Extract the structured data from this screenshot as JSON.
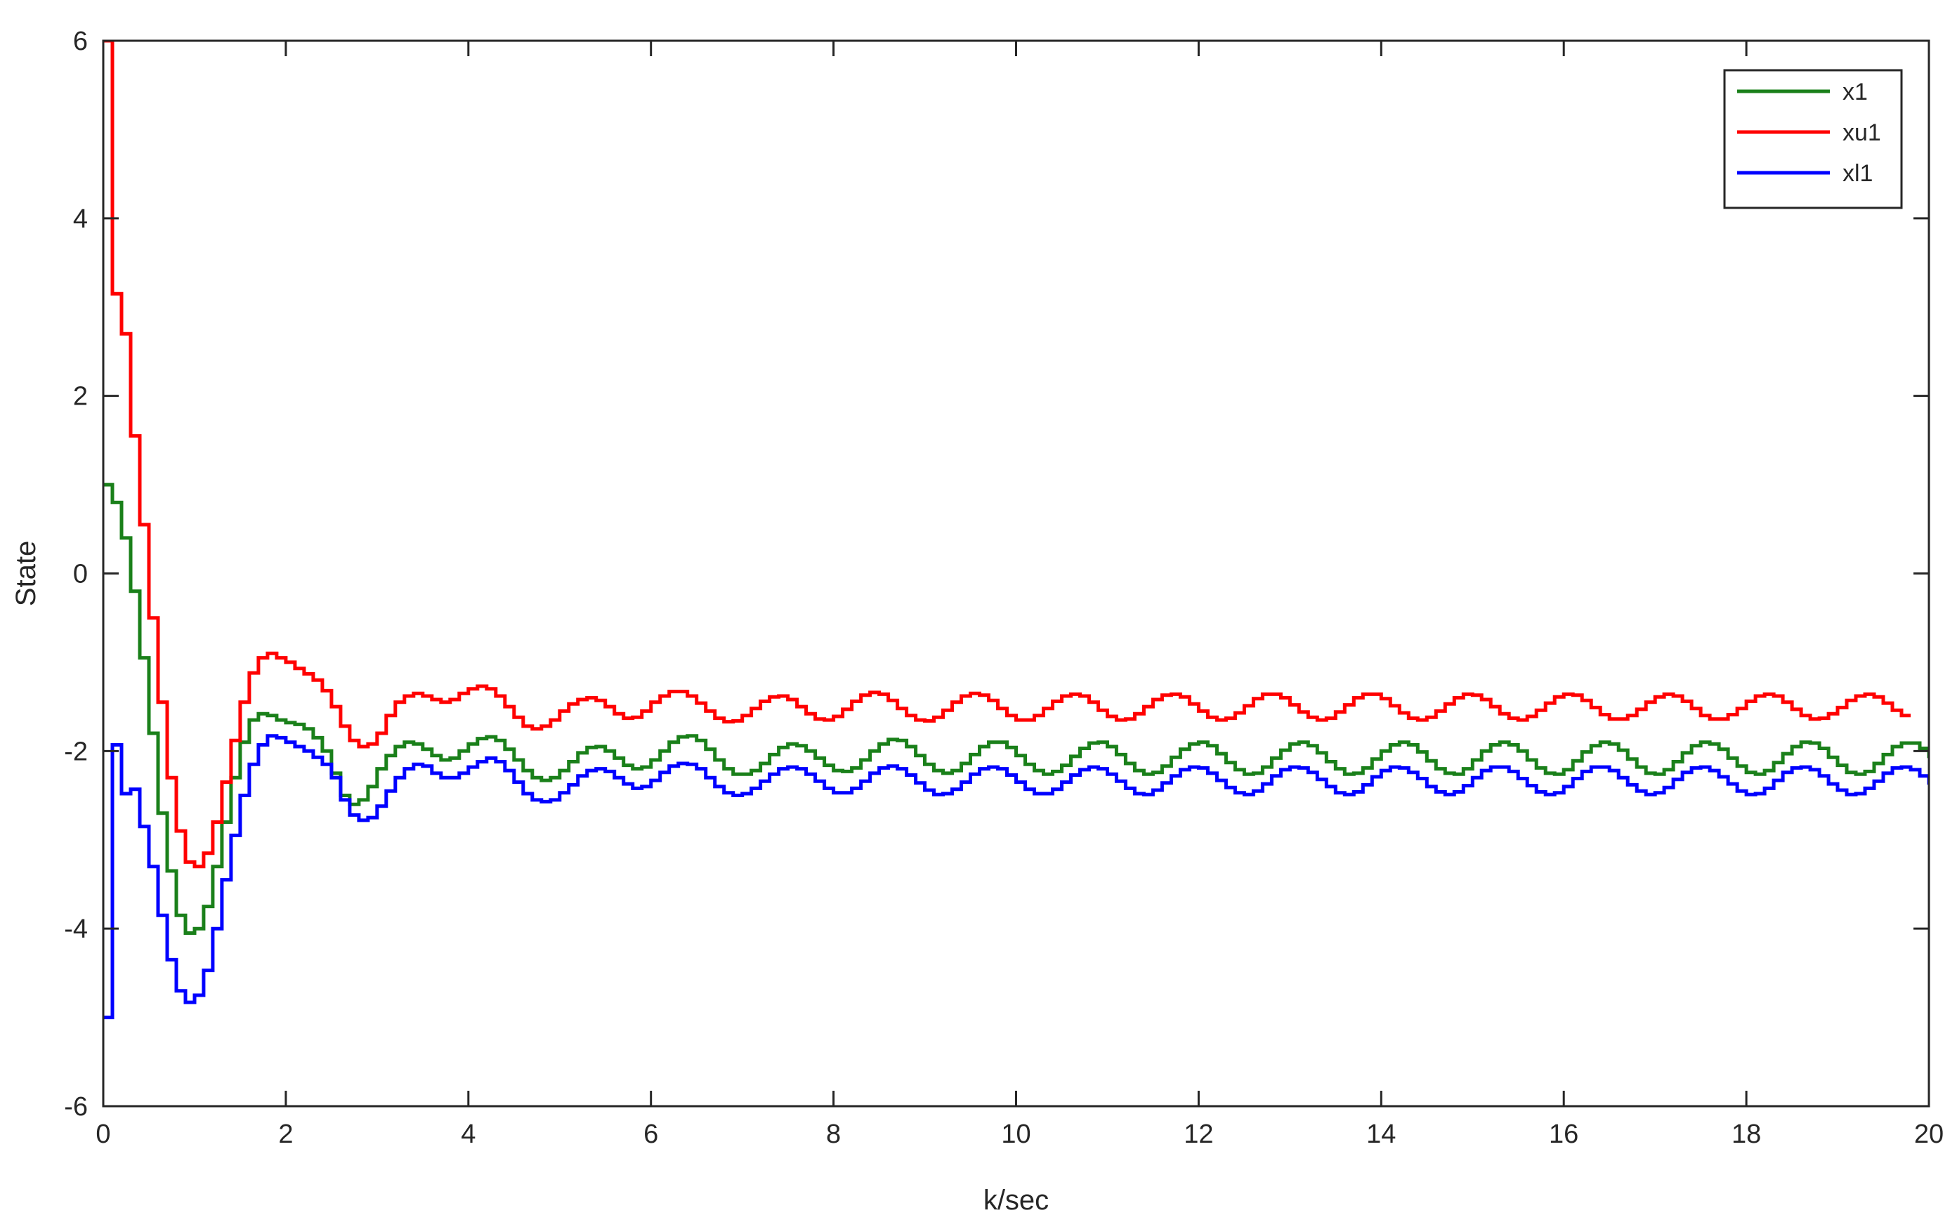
{
  "chart_data": {
    "type": "line",
    "step": true,
    "xlabel": "k/sec",
    "ylabel": "State",
    "xlim": [
      0,
      20
    ],
    "ylim": [
      -6,
      6
    ],
    "xticks": [
      0,
      2,
      4,
      6,
      8,
      10,
      12,
      14,
      16,
      18,
      20
    ],
    "yticks": [
      -6,
      -4,
      -2,
      0,
      2,
      4,
      6
    ],
    "xtick_labels": [
      "0",
      "2",
      "4",
      "6",
      "8",
      "10",
      "12",
      "14",
      "16",
      "18",
      "20"
    ],
    "ytick_labels": [
      "-6",
      "-4",
      "-2",
      "0",
      "2",
      "4",
      "6"
    ],
    "grid": false,
    "box": true,
    "legend": {
      "position": "top-right"
    },
    "sample_period": 0.1,
    "x_start": 0,
    "series": [
      {
        "name": "x1",
        "color": "#1a801a",
        "values": [
          1.0,
          0.8,
          0.4,
          -0.2,
          -0.95,
          -1.8,
          -2.7,
          -3.35,
          -3.85,
          -4.05,
          -4.0,
          -3.75,
          -3.3,
          -2.8,
          -2.3,
          -1.9,
          -1.65,
          -1.58,
          -1.6,
          -1.65,
          -1.68,
          -1.7,
          -1.75,
          -1.85,
          -2.0,
          -2.25,
          -2.5,
          -2.6,
          -2.55,
          -2.4,
          -2.2,
          -2.05,
          -1.95,
          -1.9,
          -1.92,
          -1.98,
          -2.05,
          -2.1,
          -2.08,
          -2.0,
          -1.92,
          -1.86,
          -1.84,
          -1.88,
          -1.98,
          -2.1,
          -2.22,
          -2.3,
          -2.33,
          -2.3,
          -2.22,
          -2.12,
          -2.02,
          -1.96,
          -1.95,
          -2.0,
          -2.08,
          -2.16,
          -2.2,
          -2.18,
          -2.1,
          -2.0,
          -1.9,
          -1.84,
          -1.83,
          -1.88,
          -1.98,
          -2.1,
          -2.2,
          -2.26,
          -2.26,
          -2.22,
          -2.14,
          -2.04,
          -1.96,
          -1.92,
          -1.94,
          -2.0,
          -2.08,
          -2.16,
          -2.22,
          -2.23,
          -2.19,
          -2.1,
          -2.0,
          -1.92,
          -1.87,
          -1.88,
          -1.95,
          -2.05,
          -2.15,
          -2.22,
          -2.25,
          -2.22,
          -2.14,
          -2.04,
          -1.95,
          -1.9,
          -1.9,
          -1.96,
          -2.05,
          -2.15,
          -2.22,
          -2.26,
          -2.23,
          -2.16,
          -2.06,
          -1.97,
          -1.91,
          -1.9,
          -1.95,
          -2.04,
          -2.14,
          -2.22,
          -2.26,
          -2.24,
          -2.17,
          -2.07,
          -1.98,
          -1.92,
          -1.9,
          -1.94,
          -2.03,
          -2.13,
          -2.21,
          -2.26,
          -2.25,
          -2.18,
          -2.08,
          -1.99,
          -1.92,
          -1.9,
          -1.94,
          -2.02,
          -2.12,
          -2.2,
          -2.26,
          -2.25,
          -2.19,
          -2.09,
          -2.0,
          -1.93,
          -1.9,
          -1.93,
          -2.01,
          -2.11,
          -2.2,
          -2.25,
          -2.26,
          -2.2,
          -2.1,
          -2.0,
          -1.93,
          -1.9,
          -1.93,
          -2.0,
          -2.1,
          -2.19,
          -2.25,
          -2.26,
          -2.21,
          -2.11,
          -2.01,
          -1.94,
          -1.9,
          -1.92,
          -1.99,
          -2.09,
          -2.18,
          -2.25,
          -2.26,
          -2.21,
          -2.12,
          -2.02,
          -1.94,
          -1.9,
          -1.92,
          -1.98,
          -2.08,
          -2.17,
          -2.24,
          -2.26,
          -2.22,
          -2.13,
          -2.03,
          -1.95,
          -1.9,
          -1.91,
          -1.97,
          -2.07,
          -2.16,
          -2.24,
          -2.26,
          -2.23,
          -2.14,
          -2.04,
          -1.95,
          -1.91,
          -1.91,
          -1.97,
          -2.06,
          -2.16,
          -2.23
        ]
      },
      {
        "name": "xu1",
        "color": "#ff0000",
        "values": [
          6.0,
          3.15,
          2.7,
          1.55,
          0.55,
          -0.5,
          -1.45,
          -2.3,
          -2.9,
          -3.25,
          -3.3,
          -3.15,
          -2.8,
          -2.35,
          -1.88,
          -1.45,
          -1.12,
          -0.95,
          -0.9,
          -0.95,
          -1.0,
          -1.07,
          -1.13,
          -1.2,
          -1.32,
          -1.5,
          -1.72,
          -1.88,
          -1.95,
          -1.92,
          -1.8,
          -1.6,
          -1.45,
          -1.38,
          -1.35,
          -1.38,
          -1.42,
          -1.45,
          -1.42,
          -1.35,
          -1.3,
          -1.27,
          -1.3,
          -1.38,
          -1.5,
          -1.62,
          -1.72,
          -1.75,
          -1.72,
          -1.65,
          -1.55,
          -1.47,
          -1.42,
          -1.4,
          -1.43,
          -1.5,
          -1.58,
          -1.63,
          -1.62,
          -1.55,
          -1.45,
          -1.38,
          -1.33,
          -1.33,
          -1.38,
          -1.46,
          -1.55,
          -1.63,
          -1.67,
          -1.66,
          -1.6,
          -1.52,
          -1.44,
          -1.39,
          -1.38,
          -1.42,
          -1.5,
          -1.58,
          -1.64,
          -1.65,
          -1.61,
          -1.53,
          -1.44,
          -1.37,
          -1.34,
          -1.36,
          -1.43,
          -1.52,
          -1.6,
          -1.65,
          -1.66,
          -1.62,
          -1.54,
          -1.45,
          -1.38,
          -1.35,
          -1.37,
          -1.43,
          -1.52,
          -1.6,
          -1.65,
          -1.65,
          -1.6,
          -1.52,
          -1.44,
          -1.38,
          -1.36,
          -1.38,
          -1.45,
          -1.54,
          -1.61,
          -1.65,
          -1.64,
          -1.58,
          -1.5,
          -1.42,
          -1.37,
          -1.36,
          -1.39,
          -1.47,
          -1.55,
          -1.62,
          -1.65,
          -1.63,
          -1.57,
          -1.49,
          -1.41,
          -1.36,
          -1.36,
          -1.4,
          -1.48,
          -1.56,
          -1.62,
          -1.65,
          -1.63,
          -1.56,
          -1.48,
          -1.4,
          -1.36,
          -1.36,
          -1.41,
          -1.49,
          -1.57,
          -1.63,
          -1.65,
          -1.62,
          -1.55,
          -1.47,
          -1.4,
          -1.36,
          -1.37,
          -1.42,
          -1.5,
          -1.58,
          -1.63,
          -1.65,
          -1.61,
          -1.54,
          -1.46,
          -1.39,
          -1.36,
          -1.37,
          -1.43,
          -1.51,
          -1.59,
          -1.64,
          -1.64,
          -1.6,
          -1.53,
          -1.45,
          -1.39,
          -1.36,
          -1.38,
          -1.44,
          -1.52,
          -1.6,
          -1.64,
          -1.64,
          -1.59,
          -1.52,
          -1.44,
          -1.38,
          -1.36,
          -1.38,
          -1.45,
          -1.53,
          -1.6,
          -1.64,
          -1.63,
          -1.58,
          -1.51,
          -1.43,
          -1.38,
          -1.36,
          -1.39,
          -1.46,
          -1.54,
          -1.6
        ]
      },
      {
        "name": "xl1",
        "color": "#0000ff",
        "values": [
          -5.0,
          -1.93,
          -2.48,
          -2.43,
          -2.85,
          -3.3,
          -3.85,
          -4.35,
          -4.7,
          -4.83,
          -4.75,
          -4.47,
          -4.0,
          -3.45,
          -2.95,
          -2.5,
          -2.15,
          -1.93,
          -1.83,
          -1.85,
          -1.9,
          -1.95,
          -2.0,
          -2.07,
          -2.15,
          -2.3,
          -2.55,
          -2.72,
          -2.78,
          -2.75,
          -2.62,
          -2.45,
          -2.3,
          -2.2,
          -2.15,
          -2.17,
          -2.25,
          -2.3,
          -2.3,
          -2.25,
          -2.18,
          -2.12,
          -2.08,
          -2.12,
          -2.22,
          -2.35,
          -2.48,
          -2.55,
          -2.57,
          -2.55,
          -2.47,
          -2.38,
          -2.28,
          -2.22,
          -2.2,
          -2.23,
          -2.3,
          -2.37,
          -2.42,
          -2.4,
          -2.33,
          -2.24,
          -2.17,
          -2.14,
          -2.15,
          -2.2,
          -2.3,
          -2.4,
          -2.47,
          -2.5,
          -2.48,
          -2.42,
          -2.34,
          -2.26,
          -2.2,
          -2.18,
          -2.2,
          -2.26,
          -2.34,
          -2.42,
          -2.47,
          -2.47,
          -2.42,
          -2.34,
          -2.25,
          -2.19,
          -2.17,
          -2.2,
          -2.27,
          -2.36,
          -2.44,
          -2.49,
          -2.48,
          -2.43,
          -2.35,
          -2.26,
          -2.2,
          -2.18,
          -2.2,
          -2.27,
          -2.35,
          -2.43,
          -2.48,
          -2.48,
          -2.43,
          -2.35,
          -2.27,
          -2.21,
          -2.18,
          -2.2,
          -2.26,
          -2.34,
          -2.42,
          -2.48,
          -2.49,
          -2.44,
          -2.36,
          -2.28,
          -2.21,
          -2.18,
          -2.19,
          -2.25,
          -2.33,
          -2.41,
          -2.47,
          -2.49,
          -2.45,
          -2.37,
          -2.28,
          -2.21,
          -2.18,
          -2.19,
          -2.24,
          -2.32,
          -2.4,
          -2.47,
          -2.49,
          -2.46,
          -2.38,
          -2.29,
          -2.22,
          -2.18,
          -2.19,
          -2.24,
          -2.31,
          -2.4,
          -2.46,
          -2.49,
          -2.46,
          -2.39,
          -2.3,
          -2.22,
          -2.18,
          -2.18,
          -2.23,
          -2.31,
          -2.39,
          -2.46,
          -2.49,
          -2.47,
          -2.4,
          -2.31,
          -2.23,
          -2.18,
          -2.18,
          -2.22,
          -2.3,
          -2.38,
          -2.45,
          -2.49,
          -2.47,
          -2.41,
          -2.32,
          -2.24,
          -2.19,
          -2.18,
          -2.22,
          -2.29,
          -2.37,
          -2.45,
          -2.49,
          -2.48,
          -2.42,
          -2.33,
          -2.24,
          -2.19,
          -2.18,
          -2.21,
          -2.28,
          -2.37,
          -2.44,
          -2.49,
          -2.48,
          -2.42,
          -2.34,
          -2.25,
          -2.19,
          -2.18,
          -2.21,
          -2.28,
          -2.36,
          -2.44
        ]
      }
    ]
  }
}
